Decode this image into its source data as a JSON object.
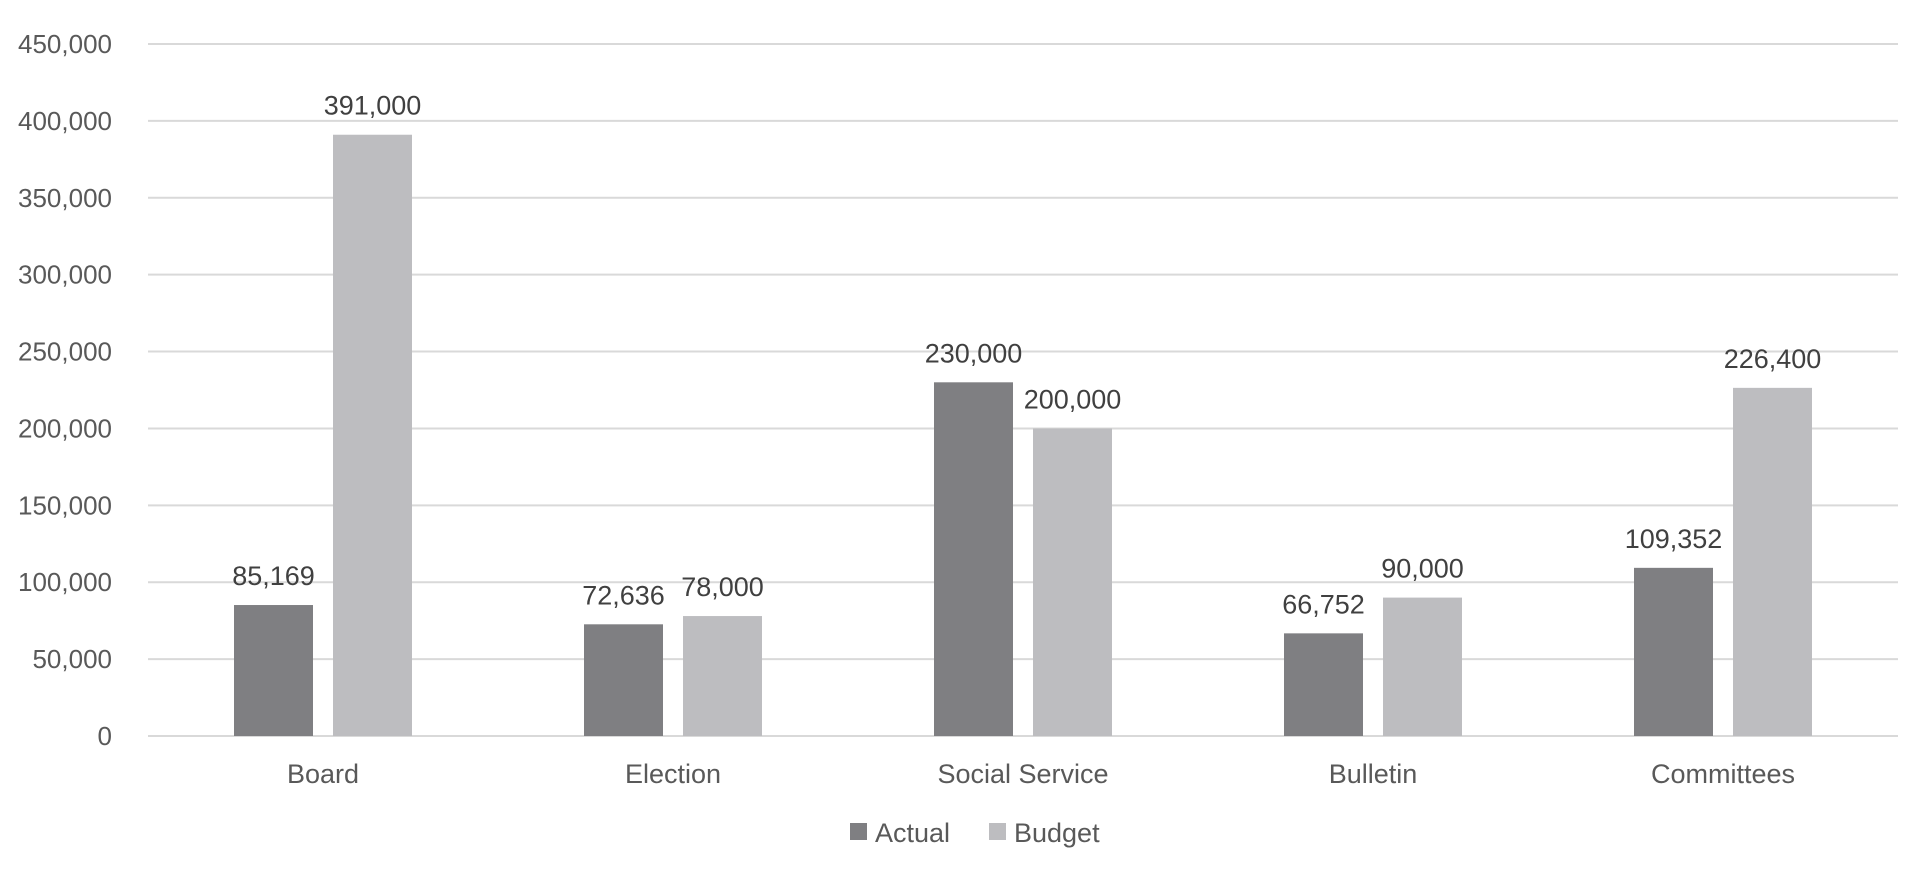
{
  "chart_data": {
    "type": "bar",
    "title": "",
    "xlabel": "",
    "ylabel": "",
    "categories": [
      "Board",
      "Election",
      "Social Service",
      "Bulletin",
      "Committees"
    ],
    "series": [
      {
        "name": "Actual",
        "color": "#7f7f82",
        "values": [
          85169,
          72636,
          230000,
          66752,
          109352
        ]
      },
      {
        "name": "Budget",
        "color": "#bdbdc0",
        "values": [
          391000,
          78000,
          200000,
          90000,
          226400
        ]
      }
    ],
    "data_labels": [
      [
        "85,169",
        "72,636",
        "230,000",
        "66,752",
        "109,352"
      ],
      [
        "391,000",
        "78,000",
        "200,000",
        "90,000",
        "226,400"
      ]
    ],
    "ylim": [
      0,
      450000
    ],
    "yticks": [
      0,
      50000,
      100000,
      150000,
      200000,
      250000,
      300000,
      350000,
      400000,
      450000
    ],
    "ytick_labels": [
      "0",
      "50,000",
      "100,000",
      "150,000",
      "200,000",
      "250,000",
      "300,000",
      "350,000",
      "400,000",
      "450,000"
    ],
    "grid": true,
    "legend_position": "bottom-center",
    "gridline_color": "#d9d9d9"
  }
}
